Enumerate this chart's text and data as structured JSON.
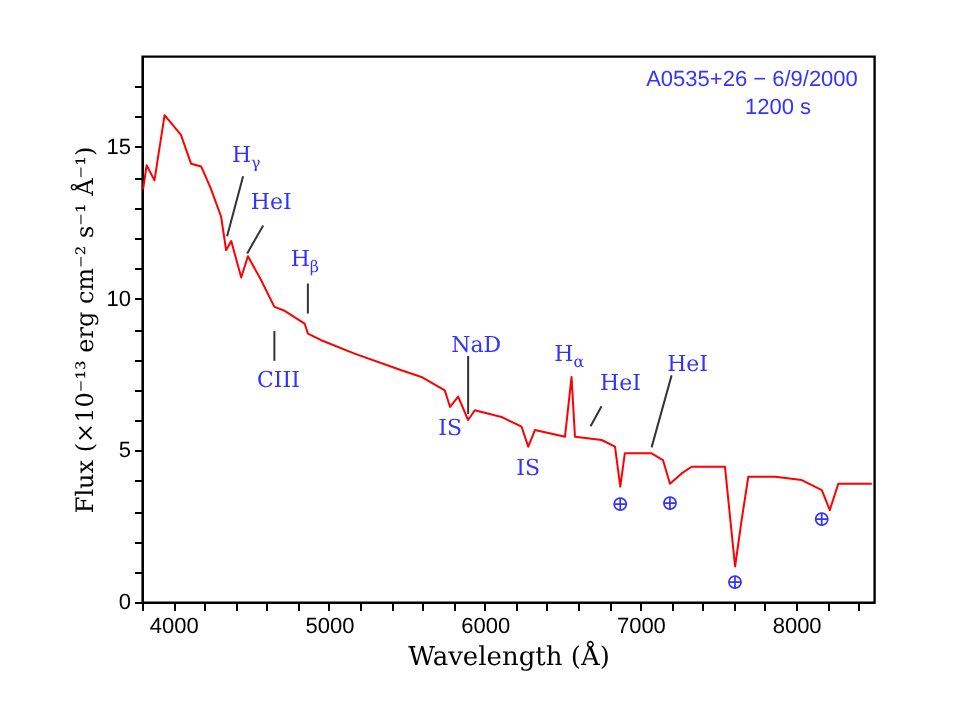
{
  "chart_data": {
    "type": "line",
    "xlabel": "Wavelength (Å)",
    "ylabel": "Flux (×10⁻¹³ erg cm⁻² s⁻¹ Å⁻¹)",
    "x": [
      3807,
      3830,
      3880,
      3945,
      4050,
      4115,
      4180,
      4244,
      4308,
      4340,
      4373,
      4437,
      4480,
      4566,
      4650,
      4716,
      4844,
      4865,
      4951,
      5165,
      5465,
      5594,
      5744,
      5778,
      5830,
      5894,
      5937,
      6108,
      6237,
      6280,
      6323,
      6516,
      6558,
      6580,
      6751,
      6837,
      6871,
      6900,
      7072,
      7145,
      7190,
      7265,
      7329,
      7543,
      7608,
      7650,
      7693,
      7865,
      8036,
      8165,
      8216,
      8271,
      8486
    ],
    "series": [
      {
        "color": "#ff0000",
        "values": [
          13.6,
          14.4,
          13.9,
          16.05,
          15.4,
          14.45,
          14.36,
          13.6,
          12.7,
          11.6,
          11.9,
          10.7,
          11.4,
          10.6,
          9.73,
          9.6,
          9.18,
          8.85,
          8.63,
          8.19,
          7.64,
          7.42,
          6.98,
          6.43,
          6.77,
          6.0,
          6.32,
          6.1,
          5.78,
          5.12,
          5.67,
          5.45,
          7.42,
          5.45,
          5.34,
          5.12,
          3.8,
          4.9,
          4.9,
          4.68,
          3.9,
          4.24,
          4.46,
          4.46,
          1.17,
          2.7,
          4.13,
          4.13,
          4.02,
          3.69,
          3.03,
          3.9,
          3.9
        ]
      }
    ],
    "xlim": [
      3800,
      8500
    ],
    "ylim": [
      0,
      18
    ],
    "xticks": [
      {
        "value": 3800,
        "label": null
      },
      4000,
      {
        "value": 4200,
        "label": null
      },
      {
        "value": 4400,
        "label": null
      },
      {
        "value": 4600,
        "label": null
      },
      {
        "value": 4800,
        "label": null
      },
      5000,
      {
        "value": 5200,
        "label": null
      },
      {
        "value": 5400,
        "label": null
      },
      {
        "value": 5600,
        "label": null
      },
      {
        "value": 5800,
        "label": null
      },
      6000,
      {
        "value": 6200,
        "label": null
      },
      {
        "value": 6400,
        "label": null
      },
      {
        "value": 6600,
        "label": null
      },
      {
        "value": 6800,
        "label": null
      },
      7000,
      {
        "value": 7200,
        "label": null
      },
      {
        "value": 7400,
        "label": null
      },
      {
        "value": 7600,
        "label": null
      },
      {
        "value": 7800,
        "label": null
      },
      8000,
      {
        "value": 8200,
        "label": null
      },
      {
        "value": 8400,
        "label": null
      }
    ],
    "yticks": [
      0,
      {
        "value": 1,
        "label": null
      },
      {
        "value": 2,
        "label": null
      },
      {
        "value": 3,
        "label": null
      },
      {
        "value": 4,
        "label": null
      },
      5,
      {
        "value": 6,
        "label": null
      },
      {
        "value": 7,
        "label": null
      },
      {
        "value": 8,
        "label": null
      },
      {
        "value": 9,
        "label": null
      },
      10,
      {
        "value": 11,
        "label": null
      },
      {
        "value": 12,
        "label": null
      },
      {
        "value": 13,
        "label": null
      },
      {
        "value": 14,
        "label": null
      },
      15,
      {
        "value": 16,
        "label": null
      },
      {
        "value": 17,
        "label": null
      }
    ],
    "grid": false,
    "marker": "none",
    "line_style": "solid",
    "annotations": [
      "A0535+26 − 6/9/2000",
      "1200 s",
      {
        "text": "H$_{γ}$",
        "x": 4340,
        "y": 11.6
      },
      {
        "text": "HeI",
        "x": 4437,
        "y": 10.7
      },
      {
        "text": "H$_{β}$",
        "x": 4865,
        "y": 8.85
      },
      {
        "text": "CIII",
        "x": 4650,
        "y": 9.73
      },
      {
        "text": "NaD",
        "x": 5894,
        "y": 6.0
      },
      {
        "text": "IS",
        "x": 5778,
        "y": 6.43
      },
      {
        "text": "IS",
        "x": 6280,
        "y": 5.12
      },
      {
        "text": "H$_{α}$",
        "x": 6558,
        "y": 7.42
      },
      {
        "text": "HeI",
        "x": 6680,
        "y": 5.4
      },
      {
        "text": "HeI",
        "x": 7072,
        "y": 4.9
      },
      {
        "text": "⊕",
        "x": 6871,
        "y": 3.8
      },
      {
        "text": "⊕",
        "x": 7190,
        "y": 3.9
      },
      {
        "text": "⊕",
        "x": 7608,
        "y": 1.17
      },
      {
        "text": "⊕",
        "x": 8216,
        "y": 3.03
      }
    ]
  }
}
